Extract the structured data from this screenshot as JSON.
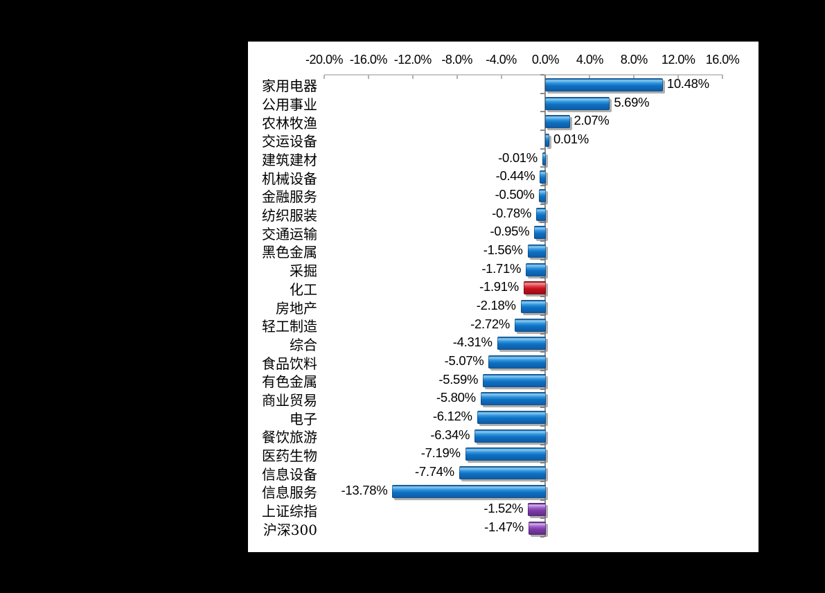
{
  "chart_data": {
    "type": "bar",
    "orientation": "horizontal",
    "title": "",
    "xlabel": "",
    "ylabel": "",
    "xlim": [
      -20,
      16
    ],
    "x_tick_step": 4,
    "x_tick_labels": [
      "-20.0%",
      "-16.0%",
      "-12.0%",
      "-8.0%",
      "-4.0%",
      "0.0%",
      "4.0%",
      "8.0%",
      "12.0%",
      "16.0%"
    ],
    "grid": false,
    "legend": "none",
    "value_labels_shown": true,
    "bars": [
      {
        "category": "家用电器",
        "value": 10.48,
        "label": "10.48%",
        "color": "blue"
      },
      {
        "category": "公用事业",
        "value": 5.69,
        "label": "5.69%",
        "color": "blue"
      },
      {
        "category": "农林牧渔",
        "value": 2.07,
        "label": "2.07%",
        "color": "blue"
      },
      {
        "category": "交运设备",
        "value": 0.01,
        "label": "0.01%",
        "color": "blue"
      },
      {
        "category": "建筑建材",
        "value": -0.01,
        "label": "-0.01%",
        "color": "blue"
      },
      {
        "category": "机械设备",
        "value": -0.44,
        "label": "-0.44%",
        "color": "blue"
      },
      {
        "category": "金融服务",
        "value": -0.5,
        "label": "-0.50%",
        "color": "blue"
      },
      {
        "category": "纺织服装",
        "value": -0.78,
        "label": "-0.78%",
        "color": "blue"
      },
      {
        "category": "交通运输",
        "value": -0.95,
        "label": "-0.95%",
        "color": "blue"
      },
      {
        "category": "黑色金属",
        "value": -1.56,
        "label": "-1.56%",
        "color": "blue"
      },
      {
        "category": "采掘",
        "value": -1.71,
        "label": "-1.71%",
        "color": "blue"
      },
      {
        "category": "化工",
        "value": -1.91,
        "label": "-1.91%",
        "color": "red"
      },
      {
        "category": "房地产",
        "value": -2.18,
        "label": "-2.18%",
        "color": "blue"
      },
      {
        "category": "轻工制造",
        "value": -2.72,
        "label": "-2.72%",
        "color": "blue"
      },
      {
        "category": "综合",
        "value": -4.31,
        "label": "-4.31%",
        "color": "blue"
      },
      {
        "category": "食品饮料",
        "value": -5.07,
        "label": "-5.07%",
        "color": "blue"
      },
      {
        "category": "有色金属",
        "value": -5.59,
        "label": "-5.59%",
        "color": "blue"
      },
      {
        "category": "商业贸易",
        "value": -5.8,
        "label": "-5.80%",
        "color": "blue"
      },
      {
        "category": "电子",
        "value": -6.12,
        "label": "-6.12%",
        "color": "blue"
      },
      {
        "category": "餐饮旅游",
        "value": -6.34,
        "label": "-6.34%",
        "color": "blue"
      },
      {
        "category": "医药生物",
        "value": -7.19,
        "label": "-7.19%",
        "color": "blue"
      },
      {
        "category": "信息设备",
        "value": -7.74,
        "label": "-7.74%",
        "color": "blue"
      },
      {
        "category": "信息服务",
        "value": -13.78,
        "label": "-13.78%",
        "color": "blue"
      },
      {
        "category": "上证综指",
        "value": -1.52,
        "label": "-1.52%",
        "color": "purple"
      },
      {
        "category": "沪深300",
        "value": -1.47,
        "label": "-1.47%",
        "color": "purple"
      }
    ]
  },
  "colors": {
    "page_background": "#000000",
    "chart_background": "#FFFFFF",
    "bar_blue": "#1577CB",
    "bar_red": "#C4101E",
    "bar_purple": "#7D3BA8",
    "top_axis_line": "#C6C6C6",
    "zero_axis_line": "#8A8A8A",
    "text": "#000000"
  }
}
